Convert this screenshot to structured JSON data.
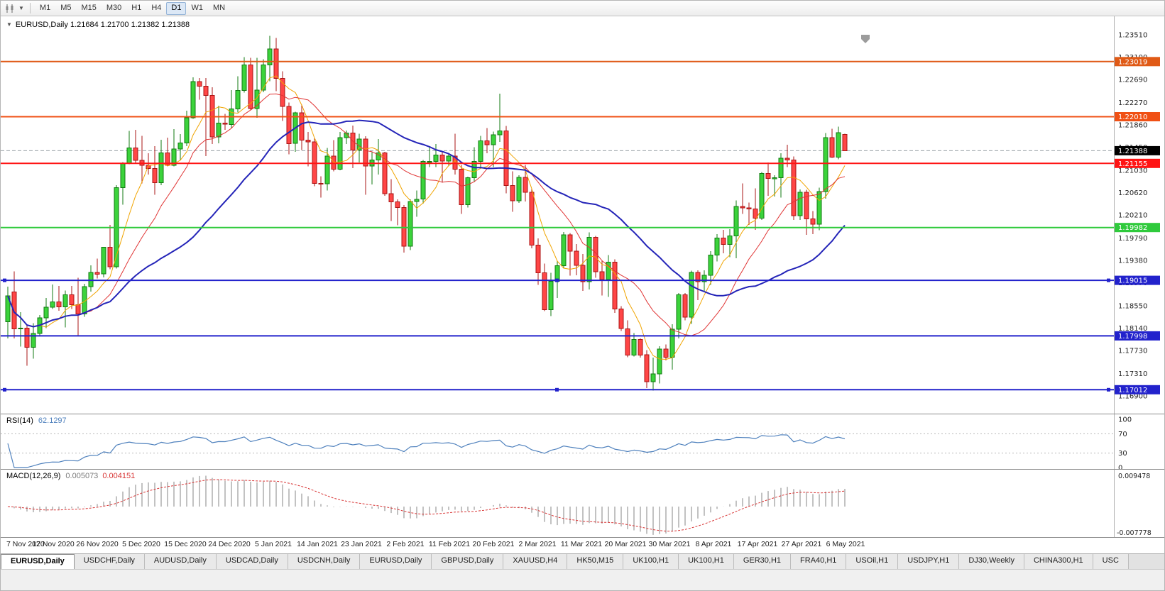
{
  "toolbar": {
    "timeframes": [
      "M1",
      "M5",
      "M15",
      "M30",
      "H1",
      "H4",
      "D1",
      "W1",
      "MN"
    ],
    "selected": "D1"
  },
  "chart": {
    "header": {
      "collapse_icon": "▼",
      "symbol": "EURUSD,Daily",
      "ohlc": "1.21684 1.21700 1.21382 1.21388"
    },
    "rsi_header": {
      "name": "RSI(14)",
      "value": "62.1297"
    },
    "macd_header": {
      "name": "MACD(12,26,9)",
      "macd_value": "0.005073",
      "signal_value": "0.004151"
    }
  },
  "chart_data": {
    "type": "candlestick",
    "symbol": "EURUSD",
    "timeframe": "Daily",
    "title": "EURUSD,Daily",
    "current_bar": {
      "open": 1.21684,
      "high": 1.217,
      "low": 1.21382,
      "close": 1.21388
    },
    "y_axis_ticks": [
      "1.23510",
      "1.23100",
      "1.22690",
      "1.22270",
      "1.21860",
      "1.21450",
      "1.21030",
      "1.20620",
      "1.20210",
      "1.19790",
      "1.19380",
      "1.18970",
      "1.18550",
      "1.18140",
      "1.17730",
      "1.17310",
      "1.16900"
    ],
    "x_labels": [
      "7 Nov 2020",
      "17 Nov 2020",
      "26 Nov 2020",
      "5 Dec 2020",
      "15 Dec 2020",
      "24 Dec 2020",
      "5 Jan 2021",
      "14 Jan 2021",
      "23 Jan 2021",
      "2 Feb 2021",
      "11 Feb 2021",
      "20 Feb 2021",
      "2 Mar 2021",
      "11 Mar 2021",
      "20 Mar 2021",
      "30 Mar 2021",
      "8 Apr 2021",
      "17 Apr 2021",
      "27 Apr 2021",
      "6 May 2021"
    ],
    "horizontal_lines": [
      {
        "price": 1.23019,
        "label": "1.23019",
        "color": "#e05a16",
        "handles": false
      },
      {
        "price": 1.2201,
        "label": "1.22010",
        "color": "#f05014",
        "handles": false
      },
      {
        "price": 1.21155,
        "label": "1.21155",
        "color": "#ff1414",
        "handles": false
      },
      {
        "price": 1.19982,
        "label": "1.19982",
        "color": "#2fca3c",
        "handles": false
      },
      {
        "price": 1.19015,
        "label": "1.19015",
        "color": "#2222cc",
        "handles": true
      },
      {
        "price": 1.17998,
        "label": "1.17998",
        "color": "#2222cc",
        "handles": false
      },
      {
        "price": 1.17012,
        "label": "1.17012",
        "color": "#2222cc",
        "handles": true
      }
    ],
    "price_line": {
      "price": 1.21388,
      "label": "1.21388",
      "color": "#000000"
    },
    "moving_averages": [
      {
        "period": 6,
        "color": "#f0a400",
        "width": 1
      },
      {
        "period": 13,
        "color": "#e03434",
        "width": 1
      },
      {
        "period": 30,
        "color": "#2424b8",
        "width": 2
      }
    ],
    "candle_colors": {
      "up_fill": "#3bd33b",
      "up_border": "#117a11",
      "down_fill": "#ff4646",
      "down_border": "#aa1414"
    },
    "candles": [
      [
        1.1826,
        1.189,
        1.1795,
        1.1873
      ],
      [
        1.188,
        1.1918,
        1.1795,
        1.1813
      ],
      [
        1.1813,
        1.1843,
        1.178,
        1.1814
      ],
      [
        1.1814,
        1.182,
        1.1745,
        1.1779
      ],
      [
        1.1779,
        1.1823,
        1.1758,
        1.1804
      ],
      [
        1.1804,
        1.1838,
        1.1799,
        1.1833
      ],
      [
        1.1833,
        1.1869,
        1.1814,
        1.1852
      ],
      [
        1.1852,
        1.1894,
        1.1849,
        1.1862
      ],
      [
        1.1862,
        1.1891,
        1.1846,
        1.1853
      ],
      [
        1.1853,
        1.1883,
        1.1815,
        1.1875
      ],
      [
        1.1875,
        1.1891,
        1.1849,
        1.1857
      ],
      [
        1.1857,
        1.1906,
        1.18,
        1.184
      ],
      [
        1.184,
        1.1895,
        1.1835,
        1.189
      ],
      [
        1.189,
        1.1929,
        1.1881,
        1.1916
      ],
      [
        1.1916,
        1.1941,
        1.1905,
        1.1913
      ],
      [
        1.1913,
        1.1963,
        1.1907,
        1.1962
      ],
      [
        1.1962,
        1.2003,
        1.1922,
        1.1926
      ],
      [
        1.1926,
        1.2076,
        1.1923,
        1.2071
      ],
      [
        1.2071,
        1.2118,
        1.204,
        1.2115
      ],
      [
        1.2115,
        1.2175,
        1.2114,
        1.2144
      ],
      [
        1.2144,
        1.2177,
        1.2115,
        1.2121
      ],
      [
        1.2121,
        1.2166,
        1.2079,
        1.2112
      ],
      [
        1.2112,
        1.2134,
        1.2095,
        1.2106
      ],
      [
        1.2106,
        1.2147,
        1.2058,
        1.208
      ],
      [
        1.208,
        1.2159,
        1.2076,
        1.2135
      ],
      [
        1.2135,
        1.2163,
        1.211,
        1.2112
      ],
      [
        1.2112,
        1.2178,
        1.211,
        1.2142
      ],
      [
        1.2142,
        1.2169,
        1.2122,
        1.2153
      ],
      [
        1.2153,
        1.2212,
        1.2147,
        1.2199
      ],
      [
        1.2199,
        1.2273,
        1.2197,
        1.2265
      ],
      [
        1.2265,
        1.2272,
        1.2232,
        1.2257
      ],
      [
        1.2257,
        1.2272,
        1.2129,
        1.224
      ],
      [
        1.224,
        1.2255,
        1.2151,
        1.2164
      ],
      [
        1.2164,
        1.2221,
        1.2152,
        1.2189
      ],
      [
        1.2189,
        1.2206,
        1.2177,
        1.2187
      ],
      [
        1.2187,
        1.225,
        1.2181,
        1.2215
      ],
      [
        1.2215,
        1.2275,
        1.2209,
        1.2249
      ],
      [
        1.2249,
        1.231,
        1.2245,
        1.2296
      ],
      [
        1.2296,
        1.2309,
        1.2214,
        1.2216
      ],
      [
        1.2216,
        1.2309,
        1.2199,
        1.225
      ],
      [
        1.225,
        1.2306,
        1.2246,
        1.2296
      ],
      [
        1.2296,
        1.2349,
        1.2266,
        1.2325
      ],
      [
        1.2325,
        1.2345,
        1.2248,
        1.2271
      ],
      [
        1.2271,
        1.2284,
        1.2193,
        1.222
      ],
      [
        1.222,
        1.2227,
        1.2132,
        1.2152
      ],
      [
        1.2152,
        1.221,
        1.2137,
        1.2208
      ],
      [
        1.2208,
        1.2223,
        1.214,
        1.2158
      ],
      [
        1.2158,
        1.2173,
        1.211,
        1.2155
      ],
      [
        1.2155,
        1.2163,
        1.2074,
        1.2079
      ],
      [
        1.2079,
        1.2092,
        1.2053,
        1.2078
      ],
      [
        1.2078,
        1.2144,
        1.2066,
        1.2129
      ],
      [
        1.2129,
        1.2158,
        1.2101,
        1.2105
      ],
      [
        1.2105,
        1.2173,
        1.2103,
        1.2163
      ],
      [
        1.2163,
        1.2176,
        1.2151,
        1.2171
      ],
      [
        1.2171,
        1.2185,
        1.2107,
        1.214
      ],
      [
        1.214,
        1.217,
        1.2117,
        1.216
      ],
      [
        1.216,
        1.2165,
        1.2058,
        1.2111
      ],
      [
        1.2111,
        1.2136,
        1.2077,
        1.2122
      ],
      [
        1.2122,
        1.216,
        1.2095,
        1.2135
      ],
      [
        1.2135,
        1.2137,
        1.2056,
        1.206
      ],
      [
        1.206,
        1.2087,
        1.201,
        1.2045
      ],
      [
        1.2045,
        1.205,
        1.2002,
        1.2035
      ],
      [
        1.2035,
        1.2039,
        1.1952,
        1.1964
      ],
      [
        1.1964,
        1.205,
        1.1957,
        1.2046
      ],
      [
        1.2046,
        1.2066,
        1.2018,
        1.205
      ],
      [
        1.205,
        1.2122,
        1.2042,
        1.2119
      ],
      [
        1.2119,
        1.2145,
        1.2109,
        1.2119
      ],
      [
        1.2119,
        1.2151,
        1.2109,
        1.2131
      ],
      [
        1.2131,
        1.2137,
        1.208,
        1.212
      ],
      [
        1.212,
        1.2135,
        1.2111,
        1.2129
      ],
      [
        1.2129,
        1.217,
        1.2095,
        1.2105
      ],
      [
        1.2105,
        1.2113,
        1.2023,
        1.204
      ],
      [
        1.204,
        1.2091,
        1.2035,
        1.2089
      ],
      [
        1.2089,
        1.2145,
        1.2082,
        1.2119
      ],
      [
        1.2119,
        1.2166,
        1.2109,
        1.2157
      ],
      [
        1.2157,
        1.218,
        1.2134,
        1.215
      ],
      [
        1.215,
        1.2174,
        1.2109,
        1.2168
      ],
      [
        1.2168,
        1.2243,
        1.2155,
        1.2175
      ],
      [
        1.2175,
        1.2184,
        1.2061,
        1.2075
      ],
      [
        1.2075,
        1.2101,
        1.2027,
        1.2047
      ],
      [
        1.2047,
        1.2094,
        1.2043,
        1.209
      ],
      [
        1.209,
        1.2113,
        1.2046,
        1.2063
      ],
      [
        1.2063,
        1.2069,
        1.196,
        1.1966
      ],
      [
        1.1966,
        1.1978,
        1.1893,
        1.1915
      ],
      [
        1.1915,
        1.1932,
        1.1845,
        1.1848
      ],
      [
        1.1848,
        1.1915,
        1.1836,
        1.19
      ],
      [
        1.19,
        1.1937,
        1.1869,
        1.1928
      ],
      [
        1.1928,
        1.199,
        1.1923,
        1.1985
      ],
      [
        1.1985,
        1.1988,
        1.191,
        1.1955
      ],
      [
        1.1955,
        1.1968,
        1.1911,
        1.1929
      ],
      [
        1.1929,
        1.195,
        1.1882,
        1.1899
      ],
      [
        1.1899,
        1.1989,
        1.1885,
        1.198
      ],
      [
        1.198,
        1.1983,
        1.1906,
        1.1917
      ],
      [
        1.1917,
        1.1937,
        1.1874,
        1.1903
      ],
      [
        1.1903,
        1.1948,
        1.1871,
        1.1935
      ],
      [
        1.1935,
        1.194,
        1.1842,
        1.1849
      ],
      [
        1.1849,
        1.1854,
        1.1809,
        1.1813
      ],
      [
        1.1813,
        1.1828,
        1.1761,
        1.1765
      ],
      [
        1.1765,
        1.1805,
        1.1762,
        1.1793
      ],
      [
        1.1793,
        1.1795,
        1.176,
        1.1765
      ],
      [
        1.1765,
        1.1774,
        1.1704,
        1.1716
      ],
      [
        1.1716,
        1.176,
        1.17,
        1.173
      ],
      [
        1.173,
        1.1781,
        1.1713,
        1.1776
      ],
      [
        1.1776,
        1.1784,
        1.1755,
        1.1761
      ],
      [
        1.1761,
        1.1821,
        1.1738,
        1.1812
      ],
      [
        1.1812,
        1.1878,
        1.1795,
        1.1875
      ],
      [
        1.1875,
        1.1878,
        1.1828,
        1.1834
      ],
      [
        1.1834,
        1.1919,
        1.1822,
        1.1916
      ],
      [
        1.1916,
        1.192,
        1.1865,
        1.1899
      ],
      [
        1.1899,
        1.192,
        1.1882,
        1.1911
      ],
      [
        1.1911,
        1.1955,
        1.1893,
        1.1948
      ],
      [
        1.1948,
        1.1986,
        1.1936,
        1.1979
      ],
      [
        1.1979,
        1.1994,
        1.1951,
        1.1967
      ],
      [
        1.1967,
        1.1995,
        1.1944,
        1.1983
      ],
      [
        1.1983,
        1.2048,
        1.1942,
        1.2037
      ],
      [
        1.2037,
        1.2079,
        1.2023,
        1.2034
      ],
      [
        1.2034,
        1.2044,
        1.2003,
        1.2032
      ],
      [
        1.2032,
        1.207,
        1.1994,
        1.2015
      ],
      [
        1.2015,
        1.21,
        1.2012,
        1.2097
      ],
      [
        1.2097,
        1.2117,
        1.2056,
        1.2088
      ],
      [
        1.2088,
        1.2094,
        1.2055,
        1.2089
      ],
      [
        1.2089,
        1.2134,
        1.2053,
        1.2125
      ],
      [
        1.2125,
        1.215,
        1.2109,
        1.2122
      ],
      [
        1.2122,
        1.2128,
        1.2012,
        1.202
      ],
      [
        1.202,
        1.2068,
        1.2012,
        1.2063
      ],
      [
        1.2063,
        1.2067,
        1.1985,
        1.2014
      ],
      [
        1.2014,
        1.2028,
        1.1986,
        1.2004
      ],
      [
        1.2004,
        1.2071,
        1.1993,
        1.2064
      ],
      [
        1.2064,
        1.2171,
        1.2051,
        1.2163
      ],
      [
        1.2163,
        1.2179,
        1.2126,
        1.2127
      ],
      [
        1.2127,
        1.2183,
        1.2123,
        1.2172
      ],
      [
        1.21684,
        1.217,
        1.21382,
        1.21388
      ]
    ],
    "indicators": {
      "rsi": {
        "name": "RSI",
        "period": 14,
        "current": 62.1297,
        "levels": [
          70,
          30
        ],
        "axis_ticks": [
          "100",
          "70",
          "30",
          "0"
        ],
        "color": "#4f81bd"
      },
      "macd": {
        "name": "MACD",
        "fast": 12,
        "slow": 26,
        "signal": 9,
        "current_macd": 0.005073,
        "current_signal": 0.004151,
        "axis_max": "0.009478",
        "axis_min": "-0.007778",
        "histogram_color": "#a0a0a0",
        "signal_color": "#d83434"
      }
    }
  },
  "tabs": {
    "items": [
      "EURUSD,Daily",
      "USDCHF,Daily",
      "AUDUSD,Daily",
      "USDCAD,Daily",
      "USDCNH,Daily",
      "EURUSD,Daily",
      "GBPUSD,Daily",
      "XAUUSD,H4",
      "HK50,M15",
      "UK100,H1",
      "UK100,H1",
      "GER30,H1",
      "FRA40,H1",
      "USOil,H1",
      "USDJPY,H1",
      "DJ30,Weekly",
      "CHINA300,H1",
      "USC"
    ],
    "active_index": 0
  }
}
